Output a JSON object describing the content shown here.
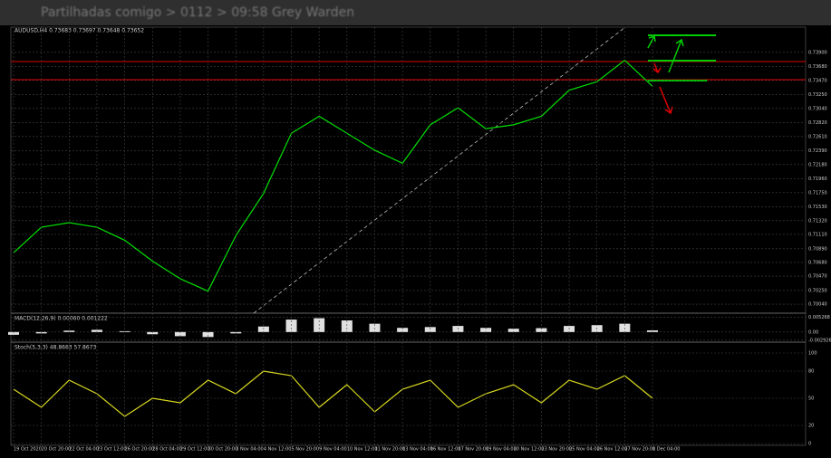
{
  "breadcrumb": "Partilhadas comigo > 0112 > 09:58 Grey Warden",
  "chart_data": [
    {
      "type": "line",
      "title": "AUDUSD,H4 0.73683 0.73697 0.73648 0.73652",
      "color": "#00e000",
      "grid": true,
      "categories": [
        "19 Oct 2020",
        "20 Oct 20:00",
        "22 Oct 04:00",
        "23 Oct 12:00",
        "26 Oct 20:00",
        "28 Oct 04:00",
        "29 Oct 12:00",
        "30 Oct 20:00",
        "3 Nov 04:00",
        "4 Nov 12:00",
        "5 Nov 20:00",
        "9 Nov 04:00",
        "10 Nov 12:00",
        "11 Nov 20:00",
        "13 Nov 04:00",
        "16 Nov 12:00",
        "17 Nov 20:00",
        "19 Nov 04:00",
        "20 Nov 12:00",
        "23 Nov 20:00",
        "25 Nov 04:00",
        "26 Nov 12:00",
        "27 Nov 20:00",
        "1 Dec 04:00"
      ],
      "values": [
        0.7083,
        0.7122,
        0.7129,
        0.7122,
        0.7102,
        0.707,
        0.7043,
        0.7024,
        0.7109,
        0.7174,
        0.7266,
        0.7292,
        0.7266,
        0.724,
        0.722,
        0.7279,
        0.7305,
        0.7273,
        0.7279,
        0.7292,
        0.7332,
        0.7345,
        0.7378,
        0.7338
      ],
      "ylim": [
        0.6993,
        0.7412
      ],
      "yticks": [
        {
          "value": 0.7004,
          "label": "0.70040"
        },
        {
          "value": 0.7025,
          "label": "0.70250"
        },
        {
          "value": 0.7047,
          "label": "0.70470"
        },
        {
          "value": 0.7068,
          "label": "0.70680"
        },
        {
          "value": 0.7089,
          "label": "0.70890"
        },
        {
          "value": 0.7111,
          "label": "0.71110"
        },
        {
          "value": 0.7132,
          "label": "0.71320"
        },
        {
          "value": 0.7153,
          "label": "0.71530"
        },
        {
          "value": 0.7175,
          "label": "0.71750"
        },
        {
          "value": 0.7196,
          "label": "0.71960"
        },
        {
          "value": 0.7218,
          "label": "0.72180"
        },
        {
          "value": 0.7239,
          "label": "0.72390"
        },
        {
          "value": 0.7261,
          "label": "0.72610"
        },
        {
          "value": 0.7282,
          "label": "0.72820"
        },
        {
          "value": 0.7304,
          "label": "0.73040"
        },
        {
          "value": 0.7325,
          "label": "0.73250"
        },
        {
          "value": 0.7347,
          "label": "0.73470"
        },
        {
          "value": 0.7368,
          "label": "0.73680"
        },
        {
          "value": 0.739,
          "label": "0.73900"
        }
      ]
    },
    {
      "type": "bar",
      "title": "MACD(12,26,9) 0.00060 0.001222",
      "color": "#e0e0e0",
      "values": [
        -0.001,
        -0.0005,
        0.0005,
        0.0008,
        0.0003,
        -0.0008,
        -0.0015,
        -0.0018,
        -0.0005,
        0.002,
        0.0045,
        0.005,
        0.0042,
        0.003,
        0.0015,
        0.0018,
        0.0022,
        0.0015,
        0.0012,
        0.0014,
        0.0022,
        0.0025,
        0.003,
        0.0006
      ],
      "ylim": [
        -0.003,
        0.0055
      ],
      "yticks": [
        {
          "value": 0.005268,
          "label": "0.005268"
        },
        {
          "value": 0,
          "label": "0.00"
        },
        {
          "value": -0.002926,
          "label": "-0.002926"
        }
      ]
    },
    {
      "type": "line",
      "title": "Stoch(5,3,3) 48.8663 57.8673",
      "color": "#d8d820",
      "values": [
        60,
        40,
        70,
        55,
        30,
        50,
        45,
        70,
        55,
        80,
        75,
        40,
        65,
        35,
        60,
        70,
        40,
        55,
        65,
        45,
        70,
        60,
        75,
        50
      ],
      "ylim": [
        0,
        100
      ],
      "yticks": [
        0,
        20,
        50,
        80,
        100
      ]
    }
  ]
}
